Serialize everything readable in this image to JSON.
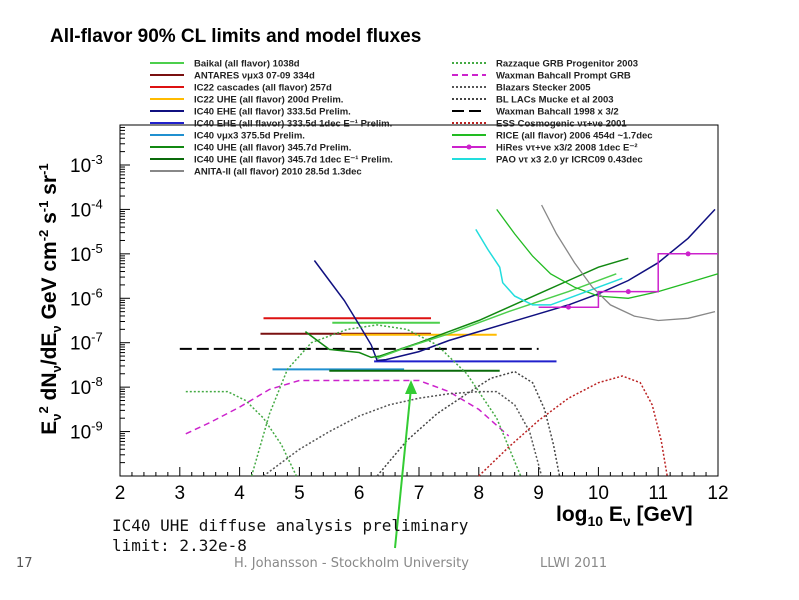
{
  "slide": {
    "page_number": "17",
    "footer_author": "H. Johansson - Stockholm University",
    "footer_event": "LLWI 2011",
    "annotation_line1": "IC40 UHE diffuse analysis preliminary",
    "annotation_line2": "limit: 2.32e-8"
  },
  "chart_data": {
    "type": "line",
    "title": "All-flavor 90% CL limits and model fluxes",
    "xlabel": "log10 Eν [GeV]",
    "ylabel": "E²ν dNν/dEν GeV cm⁻² s⁻¹ sr⁻¹",
    "xlim": [
      2,
      12
    ],
    "ylim_log10": [
      -10,
      -2.1
    ],
    "y_scale": "log",
    "x_ticks": [
      "2",
      "3",
      "4",
      "5",
      "6",
      "7",
      "8",
      "9",
      "10",
      "11",
      "12"
    ],
    "y_ticks": [
      {
        "base": "10",
        "exp": "-3",
        "log": -3
      },
      {
        "base": "10",
        "exp": "-4",
        "log": -4
      },
      {
        "base": "10",
        "exp": "-5",
        "log": -5
      },
      {
        "base": "10",
        "exp": "-6",
        "log": -6
      },
      {
        "base": "10",
        "exp": "-7",
        "log": -7
      },
      {
        "base": "10",
        "exp": "-8",
        "log": -8
      },
      {
        "base": "10",
        "exp": "-9",
        "log": -9
      }
    ],
    "legend_left": [
      {
        "label": "Baikal (all flavor) 1038d",
        "color": "#4ccf4c",
        "style": "solid"
      },
      {
        "label": "ANTARES νμx3 07-09 334d",
        "color": "#7a1010",
        "style": "solid"
      },
      {
        "label": "IC22 cascades (all flavor) 257d",
        "color": "#dd1111",
        "style": "solid"
      },
      {
        "label": "IC22 UHE (all flavor) 200d Prelim.",
        "color": "#ffbb00",
        "style": "solid"
      },
      {
        "label": "IC40 EHE (all flavor) 333.5d Prelim.",
        "color": "#101080",
        "style": "solid"
      },
      {
        "label": "IC40 EHE (all flavor) 333.5d 1dec E⁻¹ Prelim.",
        "color": "#2020cc",
        "style": "solid"
      },
      {
        "label": "IC40 νμx3 375.5d Prelim.",
        "color": "#2090d0",
        "style": "solid"
      },
      {
        "label": "IC40 UHE (all flavor) 345.7d Prelim.",
        "color": "#118811",
        "style": "solid"
      },
      {
        "label": "IC40 UHE (all flavor) 345.7d 1dec E⁻¹ Prelim.",
        "color": "#0a6a0a",
        "style": "solid"
      },
      {
        "label": "ANITA-II (all flavor) 2010 28.5d 1.3dec",
        "color": "#888888",
        "style": "solid"
      }
    ],
    "legend_right": [
      {
        "label": "Razzaque GRB Progenitor 2003",
        "color": "#44aa44",
        "style": "dotted"
      },
      {
        "label": "Waxman Bahcall Prompt GRB",
        "color": "#cc22cc",
        "style": "dashed"
      },
      {
        "label": "Blazars Stecker 2005",
        "color": "#555555",
        "style": "dotted"
      },
      {
        "label": "BL LACs Mucke et al 2003",
        "color": "#444444",
        "style": "dotted"
      },
      {
        "label": "Waxman Bahcall 1998 x 3/2",
        "color": "#000000",
        "style": "longdash"
      },
      {
        "label": "ESS Cosmogenic ντ+νe 2001",
        "color": "#bb2222",
        "style": "dotted"
      },
      {
        "label": "RICE (all flavor) 2006 454d ~1.7dec",
        "color": "#22bb22",
        "style": "solid"
      },
      {
        "label": "HiRes ντ+νe x3/2 2008 1dec E⁻²",
        "color": "#cc22cc",
        "style": "marker"
      },
      {
        "label": "PAO ντ x3 2.0 yr ICRC09 0.43dec",
        "color": "#22dddd",
        "style": "solid"
      }
    ],
    "series": [
      {
        "color": "#dd1111",
        "style": "solid",
        "width": 2,
        "points": [
          [
            4.4,
            -6.45
          ],
          [
            7.2,
            -6.45
          ]
        ]
      },
      {
        "color": "#7a1010",
        "style": "solid",
        "width": 2,
        "points": [
          [
            4.35,
            -6.8
          ],
          [
            7.2,
            -6.8
          ]
        ]
      },
      {
        "color": "#4ccf4c",
        "style": "solid",
        "width": 2,
        "points": [
          [
            5.55,
            -6.55
          ],
          [
            7.35,
            -6.55
          ]
        ]
      },
      {
        "color": "#ffbb00",
        "style": "solid",
        "width": 2,
        "points": [
          [
            5.7,
            -6.82
          ],
          [
            8.3,
            -6.82
          ]
        ]
      },
      {
        "color": "#2090d0",
        "style": "solid",
        "width": 2,
        "points": [
          [
            4.55,
            -7.6
          ],
          [
            6.75,
            -7.6
          ]
        ]
      },
      {
        "color": "#0a6a0a",
        "style": "solid",
        "width": 2,
        "points": [
          [
            5.5,
            -7.63
          ],
          [
            8.35,
            -7.63
          ]
        ]
      },
      {
        "color": "#2020cc",
        "style": "solid",
        "width": 2,
        "points": [
          [
            6.25,
            -7.42
          ],
          [
            9.3,
            -7.42
          ]
        ]
      },
      {
        "color": "#000000",
        "style": "longdash",
        "width": 2,
        "points": [
          [
            3.0,
            -7.14
          ],
          [
            9.0,
            -7.14
          ]
        ]
      },
      {
        "color": "#101080",
        "style": "solid",
        "width": 1.5,
        "points": [
          [
            5.25,
            -5.15
          ],
          [
            5.5,
            -5.6
          ],
          [
            5.75,
            -6.05
          ],
          [
            6.0,
            -6.6
          ],
          [
            6.2,
            -7.05
          ],
          [
            6.3,
            -7.4
          ],
          [
            6.45,
            -7.38
          ],
          [
            7.0,
            -7.2
          ],
          [
            7.5,
            -6.95
          ],
          [
            8.0,
            -6.75
          ],
          [
            8.5,
            -6.55
          ],
          [
            9.0,
            -6.35
          ],
          [
            9.5,
            -6.15
          ],
          [
            10.0,
            -5.9
          ],
          [
            10.5,
            -5.6
          ],
          [
            11.0,
            -5.2
          ],
          [
            11.5,
            -4.65
          ],
          [
            11.95,
            -4.0
          ]
        ]
      },
      {
        "color": "#118811",
        "style": "solid",
        "width": 1.5,
        "points": [
          [
            5.1,
            -6.75
          ],
          [
            5.3,
            -6.95
          ],
          [
            5.5,
            -7.15
          ],
          [
            6.0,
            -7.22
          ],
          [
            6.2,
            -7.33
          ],
          [
            6.35,
            -7.3
          ],
          [
            7.0,
            -7.0
          ],
          [
            7.5,
            -6.75
          ],
          [
            8.0,
            -6.5
          ],
          [
            8.5,
            -6.2
          ],
          [
            9.0,
            -5.9
          ],
          [
            9.5,
            -5.6
          ],
          [
            10.0,
            -5.3
          ],
          [
            10.5,
            -5.1
          ]
        ]
      },
      {
        "color": "#4ccf4c",
        "style": "solid",
        "width": 1.5,
        "points": [
          [
            6.3,
            -7.35
          ],
          [
            6.8,
            -7.1
          ],
          [
            7.5,
            -6.8
          ],
          [
            8.5,
            -6.3
          ],
          [
            9.5,
            -5.85
          ],
          [
            10.3,
            -5.45
          ]
        ]
      },
      {
        "color": "#22bb22",
        "style": "solid",
        "width": 1.3,
        "points": [
          [
            8.3,
            -4.0
          ],
          [
            8.6,
            -4.55
          ],
          [
            8.9,
            -5.05
          ],
          [
            9.2,
            -5.45
          ],
          [
            9.6,
            -5.75
          ],
          [
            10.0,
            -5.95
          ],
          [
            10.5,
            -6.0
          ],
          [
            11.0,
            -5.85
          ],
          [
            11.5,
            -5.65
          ],
          [
            12.0,
            -5.45
          ]
        ]
      },
      {
        "color": "#22dddd",
        "style": "solid",
        "width": 1.5,
        "points": [
          [
            7.95,
            -4.45
          ],
          [
            8.15,
            -4.9
          ],
          [
            8.35,
            -5.3
          ],
          [
            8.4,
            -5.65
          ],
          [
            8.6,
            -5.95
          ],
          [
            8.9,
            -6.15
          ],
          [
            9.2,
            -6.15
          ],
          [
            9.6,
            -5.95
          ],
          [
            10.0,
            -5.75
          ],
          [
            10.4,
            -5.55
          ]
        ]
      },
      {
        "color": "#888888",
        "style": "solid",
        "width": 1.3,
        "points": [
          [
            9.05,
            -3.9
          ],
          [
            9.3,
            -4.55
          ],
          [
            9.6,
            -5.2
          ],
          [
            9.9,
            -5.75
          ],
          [
            10.2,
            -6.15
          ],
          [
            10.6,
            -6.4
          ],
          [
            11.0,
            -6.5
          ],
          [
            11.5,
            -6.45
          ],
          [
            11.95,
            -6.3
          ]
        ]
      },
      {
        "color": "#cc22cc",
        "style": "marker",
        "width": 1.5,
        "points": [
          [
            9.0,
            -6.2
          ],
          [
            9.5,
            -6.2
          ],
          [
            10.0,
            -6.2
          ],
          [
            10.0,
            -5.85
          ],
          [
            10.5,
            -5.85
          ],
          [
            11.0,
            -5.85
          ],
          [
            11.0,
            -5.0
          ],
          [
            11.5,
            -5.0
          ],
          [
            12.0,
            -5.0
          ]
        ]
      },
      {
        "color": "#cc22cc",
        "style": "dashed",
        "width": 1.5,
        "points": [
          [
            3.1,
            -9.05
          ],
          [
            3.5,
            -8.8
          ],
          [
            4.0,
            -8.45
          ],
          [
            4.5,
            -8.05
          ],
          [
            5.0,
            -7.85
          ],
          [
            7.0,
            -7.85
          ],
          [
            7.5,
            -8.1
          ],
          [
            8.0,
            -8.5
          ],
          [
            8.5,
            -9.1
          ]
        ]
      },
      {
        "color": "#44aa44",
        "style": "dotted",
        "width": 1.5,
        "points": [
          [
            3.1,
            -8.1
          ],
          [
            3.8,
            -8.1
          ],
          [
            4.1,
            -8.3
          ],
          [
            4.4,
            -8.7
          ],
          [
            4.7,
            -9.3
          ],
          [
            4.95,
            -10.0
          ]
        ]
      },
      {
        "color": "#44aa44",
        "style": "dotted",
        "width": 1.5,
        "points": [
          [
            4.2,
            -10.0
          ],
          [
            4.5,
            -8.6
          ],
          [
            4.8,
            -7.6
          ],
          [
            5.2,
            -7.0
          ],
          [
            5.8,
            -6.7
          ],
          [
            6.3,
            -6.6
          ],
          [
            6.8,
            -6.7
          ],
          [
            7.3,
            -7.05
          ],
          [
            7.8,
            -7.7
          ],
          [
            8.3,
            -8.7
          ],
          [
            8.7,
            -10.0
          ]
        ]
      },
      {
        "color": "#555555",
        "style": "dotted",
        "width": 1.5,
        "points": [
          [
            4.4,
            -10.0
          ],
          [
            5.0,
            -9.4
          ],
          [
            5.5,
            -9.0
          ],
          [
            6.0,
            -8.65
          ],
          [
            6.5,
            -8.4
          ],
          [
            7.0,
            -8.25
          ],
          [
            7.5,
            -8.15
          ],
          [
            8.0,
            -8.1
          ],
          [
            8.3,
            -8.1
          ],
          [
            8.6,
            -8.4
          ],
          [
            8.85,
            -9.0
          ],
          [
            9.05,
            -10.0
          ]
        ]
      },
      {
        "color": "#444444",
        "style": "dotted",
        "width": 1.5,
        "points": [
          [
            6.3,
            -10.0
          ],
          [
            6.8,
            -9.2
          ],
          [
            7.3,
            -8.6
          ],
          [
            7.8,
            -8.15
          ],
          [
            8.2,
            -7.8
          ],
          [
            8.6,
            -7.65
          ],
          [
            8.9,
            -7.9
          ],
          [
            9.1,
            -8.5
          ],
          [
            9.25,
            -9.3
          ],
          [
            9.35,
            -10.0
          ]
        ]
      },
      {
        "color": "#bb2222",
        "style": "dotted",
        "width": 1.5,
        "points": [
          [
            8.0,
            -10.0
          ],
          [
            8.5,
            -9.35
          ],
          [
            9.0,
            -8.75
          ],
          [
            9.5,
            -8.25
          ],
          [
            10.0,
            -7.9
          ],
          [
            10.4,
            -7.75
          ],
          [
            10.7,
            -7.9
          ],
          [
            10.9,
            -8.4
          ],
          [
            11.05,
            -9.2
          ],
          [
            11.15,
            -10.0
          ]
        ]
      }
    ]
  }
}
